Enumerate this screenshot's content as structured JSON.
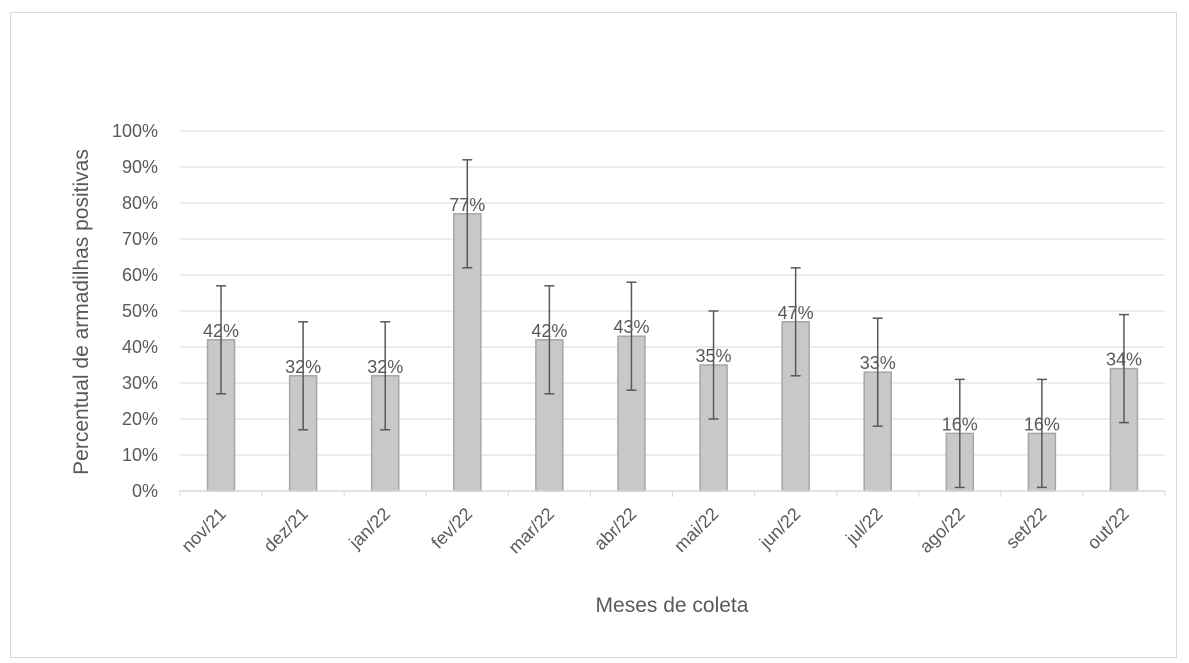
{
  "chart_data": {
    "type": "bar",
    "title": "",
    "xlabel": "Meses de coleta",
    "ylabel": "Percentual de armadilhas positivas",
    "categories": [
      "nov/21",
      "dez/21",
      "jan/22",
      "fev/22",
      "mar/22",
      "abr/22",
      "mai/22",
      "jun/22",
      "jul/22",
      "ago/22",
      "set/22",
      "out/22"
    ],
    "values": [
      42,
      32,
      32,
      77,
      42,
      43,
      35,
      47,
      33,
      16,
      16,
      34
    ],
    "data_labels": [
      "42%",
      "32%",
      "32%",
      "77%",
      "42%",
      "43%",
      "35%",
      "47%",
      "33%",
      "16%",
      "16%",
      "34%"
    ],
    "error_bar_plus_minus": 15,
    "ylim": [
      0,
      100
    ],
    "y_ticks": [
      "0%",
      "10%",
      "20%",
      "30%",
      "40%",
      "50%",
      "60%",
      "70%",
      "80%",
      "90%",
      "100%"
    ],
    "grid": true,
    "legend": "none",
    "colors": {
      "bar_fill": "#c8c8c8",
      "bar_edge": "#a6a6a6",
      "error_bar": "#595959",
      "grid": "#d9d9d9",
      "text": "#595959"
    }
  }
}
